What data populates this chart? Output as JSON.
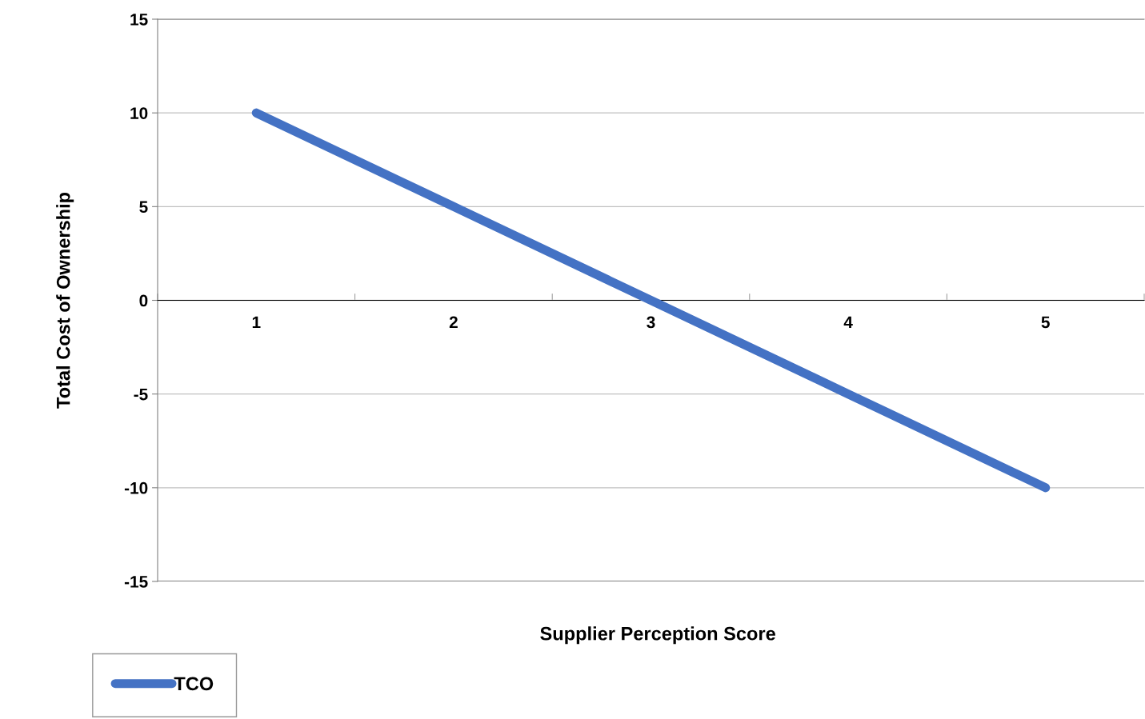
{
  "chart_data": {
    "type": "line",
    "xlabel": "Supplier Perception Score",
    "ylabel": "Total Cost of Ownership",
    "categories": [
      "1",
      "2",
      "3",
      "4",
      "5"
    ],
    "series": [
      {
        "name": "TCO",
        "color": "#4472c4",
        "values": [
          10,
          5,
          0,
          -5,
          -10
        ]
      }
    ],
    "ylim": [
      -15,
      15
    ],
    "yticks": [
      -15,
      -10,
      -5,
      0,
      5,
      10,
      15
    ],
    "grid": "y",
    "legend": "bottom left",
    "marker": "none",
    "line_style": "solid"
  }
}
